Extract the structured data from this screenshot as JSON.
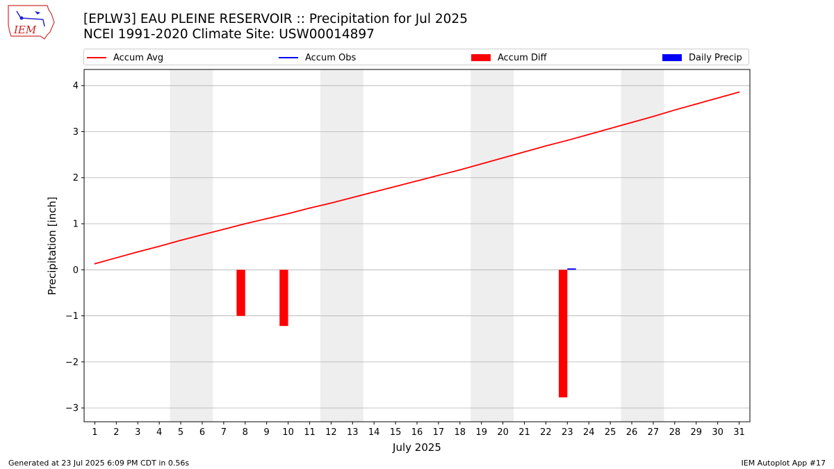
{
  "header": {
    "title_line1": "[EPLW3] EAU PLEINE RESERVOIR :: Precipitation for Jul 2025",
    "title_line2": "NCEI 1991-2020 Climate Site: USW00014897",
    "logo_text": "IEM"
  },
  "legend": [
    {
      "label": "Accum Avg",
      "kind": "line",
      "color": "#ff0000"
    },
    {
      "label": "Accum Obs",
      "kind": "line",
      "color": "#0000ff"
    },
    {
      "label": "Accum Diff",
      "kind": "patch",
      "color": "#ff0000"
    },
    {
      "label": "Daily Precip",
      "kind": "patch",
      "color": "#0000ff"
    }
  ],
  "footer": {
    "left": "Generated at 23 Jul 2025 6:09 PM CDT in 0.56s",
    "right": "IEM Autoplot App #17"
  },
  "chart_data": {
    "type": "bar",
    "xlabel": "July 2025",
    "ylabel": "Precipitation [inch]",
    "x": [
      1,
      2,
      3,
      4,
      5,
      6,
      7,
      8,
      9,
      10,
      11,
      12,
      13,
      14,
      15,
      16,
      17,
      18,
      19,
      20,
      21,
      22,
      23,
      24,
      25,
      26,
      27,
      28,
      29,
      30,
      31
    ],
    "xlim": [
      0.5,
      31.5
    ],
    "ylim": [
      -3.3,
      4.35
    ],
    "yticks": [
      -3,
      -2,
      -1,
      0,
      1,
      2,
      3,
      4
    ],
    "grid": "horizontal",
    "weekend_shading": [
      [
        5,
        6
      ],
      [
        12,
        13
      ],
      [
        19,
        20
      ],
      [
        26,
        27
      ]
    ],
    "series": [
      {
        "name": "Accum Avg",
        "type": "line",
        "color": "#ff0000",
        "values": [
          0.13,
          0.26,
          0.39,
          0.51,
          0.64,
          0.76,
          0.88,
          1.0,
          1.11,
          1.22,
          1.34,
          1.45,
          1.57,
          1.69,
          1.81,
          1.93,
          2.05,
          2.17,
          2.3,
          2.43,
          2.56,
          2.69,
          2.81,
          2.94,
          3.07,
          3.2,
          3.33,
          3.47,
          3.6,
          3.73,
          3.86
        ]
      },
      {
        "name": "Accum Diff",
        "type": "bar",
        "color": "#ff0000",
        "points": [
          {
            "x": 8,
            "y": -1.0
          },
          {
            "x": 10,
            "y": -1.22
          },
          {
            "x": 23,
            "y": -2.77
          }
        ]
      },
      {
        "name": "Daily Precip",
        "type": "bar",
        "color": "#0000ff",
        "points": [
          {
            "x": 23,
            "y": 0.03
          }
        ]
      }
    ]
  }
}
